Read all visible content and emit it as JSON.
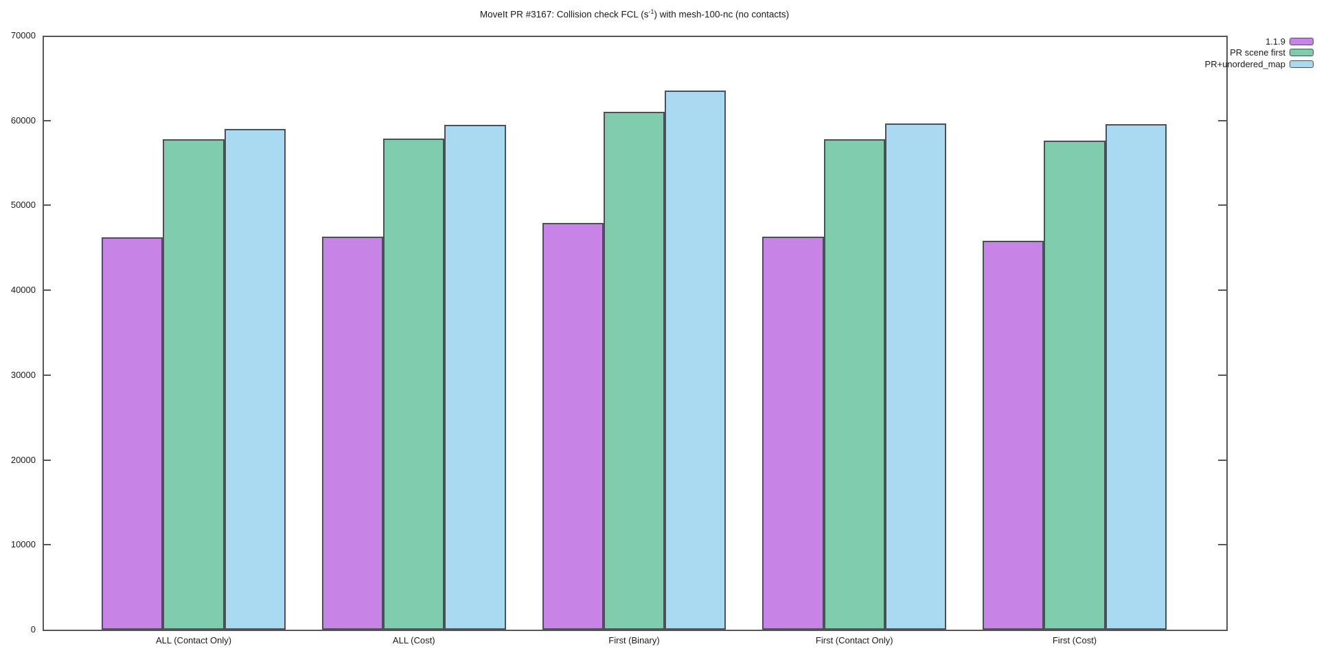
{
  "title": {
    "prefix": "MoveIt PR #3167: Collision check FCL (s",
    "superscript": "-1",
    "suffix": ") with mesh-100-nc (no contacts)"
  },
  "chart_data": {
    "type": "bar",
    "title": "MoveIt PR #3167: Collision check FCL (s^-1) with mesh-100-nc (no contacts)",
    "xlabel": "",
    "ylabel": "",
    "categories": [
      "ALL (Contact Only)",
      "ALL (Cost)",
      "First (Binary)",
      "First (Contact Only)",
      "First (Cost)"
    ],
    "series": [
      {
        "name": "1.1.9",
        "color": "#c783e6",
        "values": [
          46250,
          46300,
          47950,
          46300,
          45850
        ]
      },
      {
        "name": "PR scene first",
        "color": "#7fccad",
        "values": [
          57800,
          57900,
          61000,
          57800,
          57650
        ]
      },
      {
        "name": "PR+unordered_map",
        "color": "#aad9f2",
        "values": [
          59000,
          59500,
          63550,
          59650,
          59550
        ]
      }
    ],
    "ylim": [
      0,
      70000
    ],
    "ytick_step": 10000,
    "ytick_labels": [
      "0",
      "10000",
      "20000",
      "30000",
      "40000",
      "50000",
      "60000",
      "70000"
    ],
    "grid": false,
    "legend_position": "top-right-outside",
    "axis_color": "#565656",
    "bar_border_color": "#49505a",
    "background_color": "#ffffff"
  }
}
